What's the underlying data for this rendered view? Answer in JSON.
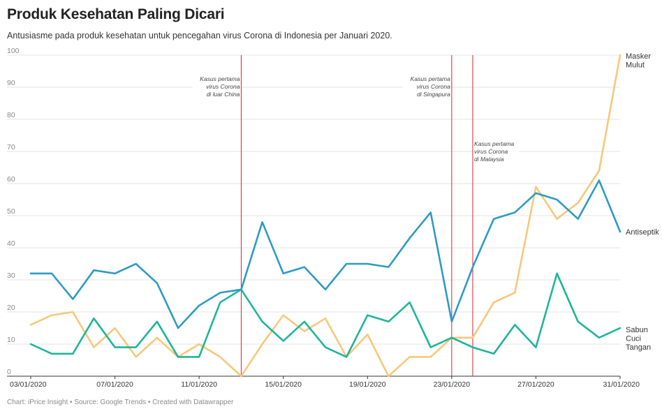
{
  "header": {
    "title": "Produk Kesehatan Paling Dicari",
    "subtitle": "Antusiasme pada produk kesehatan untuk pencegahan virus Corona di Indonesia per Januari 2020."
  },
  "footer": {
    "credit": "Chart: iPrice Insight • Source: Google Trends • Created with Datawrapper"
  },
  "chart_data": {
    "type": "line",
    "title": "Produk Kesehatan Paling Dicari",
    "subtitle": "Antusiasme pada produk kesehatan untuk pencegahan virus Corona di Indonesia per Januari 2020.",
    "x": [
      "03/01/2020",
      "04/01/2020",
      "05/01/2020",
      "06/01/2020",
      "07/01/2020",
      "08/01/2020",
      "09/01/2020",
      "10/01/2020",
      "11/01/2020",
      "12/01/2020",
      "13/01/2020",
      "14/01/2020",
      "15/01/2020",
      "16/01/2020",
      "17/01/2020",
      "18/01/2020",
      "19/01/2020",
      "20/01/2020",
      "21/01/2020",
      "22/01/2020",
      "23/01/2020",
      "24/01/2020",
      "25/01/2020",
      "26/01/2020",
      "27/01/2020",
      "28/01/2020",
      "29/01/2020",
      "30/01/2020",
      "31/01/2020"
    ],
    "x_tick_labels": [
      "03/01/2020",
      "07/01/2020",
      "11/01/2020",
      "15/01/2020",
      "19/01/2020",
      "23/01/2020",
      "27/01/2020",
      "31/01/2020"
    ],
    "ylim": [
      0,
      100
    ],
    "y_ticks": [
      0,
      10,
      20,
      30,
      40,
      50,
      60,
      70,
      80,
      90,
      100
    ],
    "grid": true,
    "xlabel": "",
    "ylabel": "",
    "series": [
      {
        "name": "Antiseptik",
        "color": "#2d9bc4",
        "values": [
          32,
          32,
          24,
          33,
          32,
          35,
          29,
          15,
          22,
          26,
          27,
          48,
          32,
          34,
          27,
          35,
          35,
          34,
          43,
          51,
          17,
          34,
          49,
          51,
          57,
          55,
          49,
          61,
          45
        ],
        "label": "Antiseptik"
      },
      {
        "name": "Masker Mulut",
        "color": "#f6c87a",
        "values": [
          16,
          19,
          20,
          9,
          15,
          6,
          12,
          6,
          10,
          6,
          0,
          10,
          19,
          14,
          18,
          6,
          13,
          0,
          6,
          6,
          12,
          12,
          23,
          26,
          59,
          49,
          54,
          64,
          100
        ],
        "label": [
          "Masker",
          "Mulut"
        ]
      },
      {
        "name": "Sabun Cuci Tangan",
        "color": "#1db59a",
        "values": [
          10,
          7,
          7,
          18,
          9,
          9,
          17,
          6,
          6,
          23,
          27,
          17,
          11,
          17,
          9,
          6,
          19,
          17,
          23,
          9,
          12,
          9,
          7,
          16,
          9,
          32,
          17,
          12,
          15
        ],
        "label": [
          "Sabun",
          "Cuci",
          "Tangan"
        ]
      }
    ],
    "annotations": [
      {
        "x": "13/01/2020",
        "lines": [
          "Kasus pertama",
          "virus Corona",
          "di luar China"
        ]
      },
      {
        "x": "23/01/2020",
        "lines": [
          "Kasus pertama",
          "virus Corona",
          "di Singapura"
        ]
      },
      {
        "x": "24/01/2020",
        "lines": [
          "Kasus pertama",
          "virus Corona",
          "di Malaysia"
        ]
      }
    ],
    "reference_line_color": "#d6212c"
  }
}
